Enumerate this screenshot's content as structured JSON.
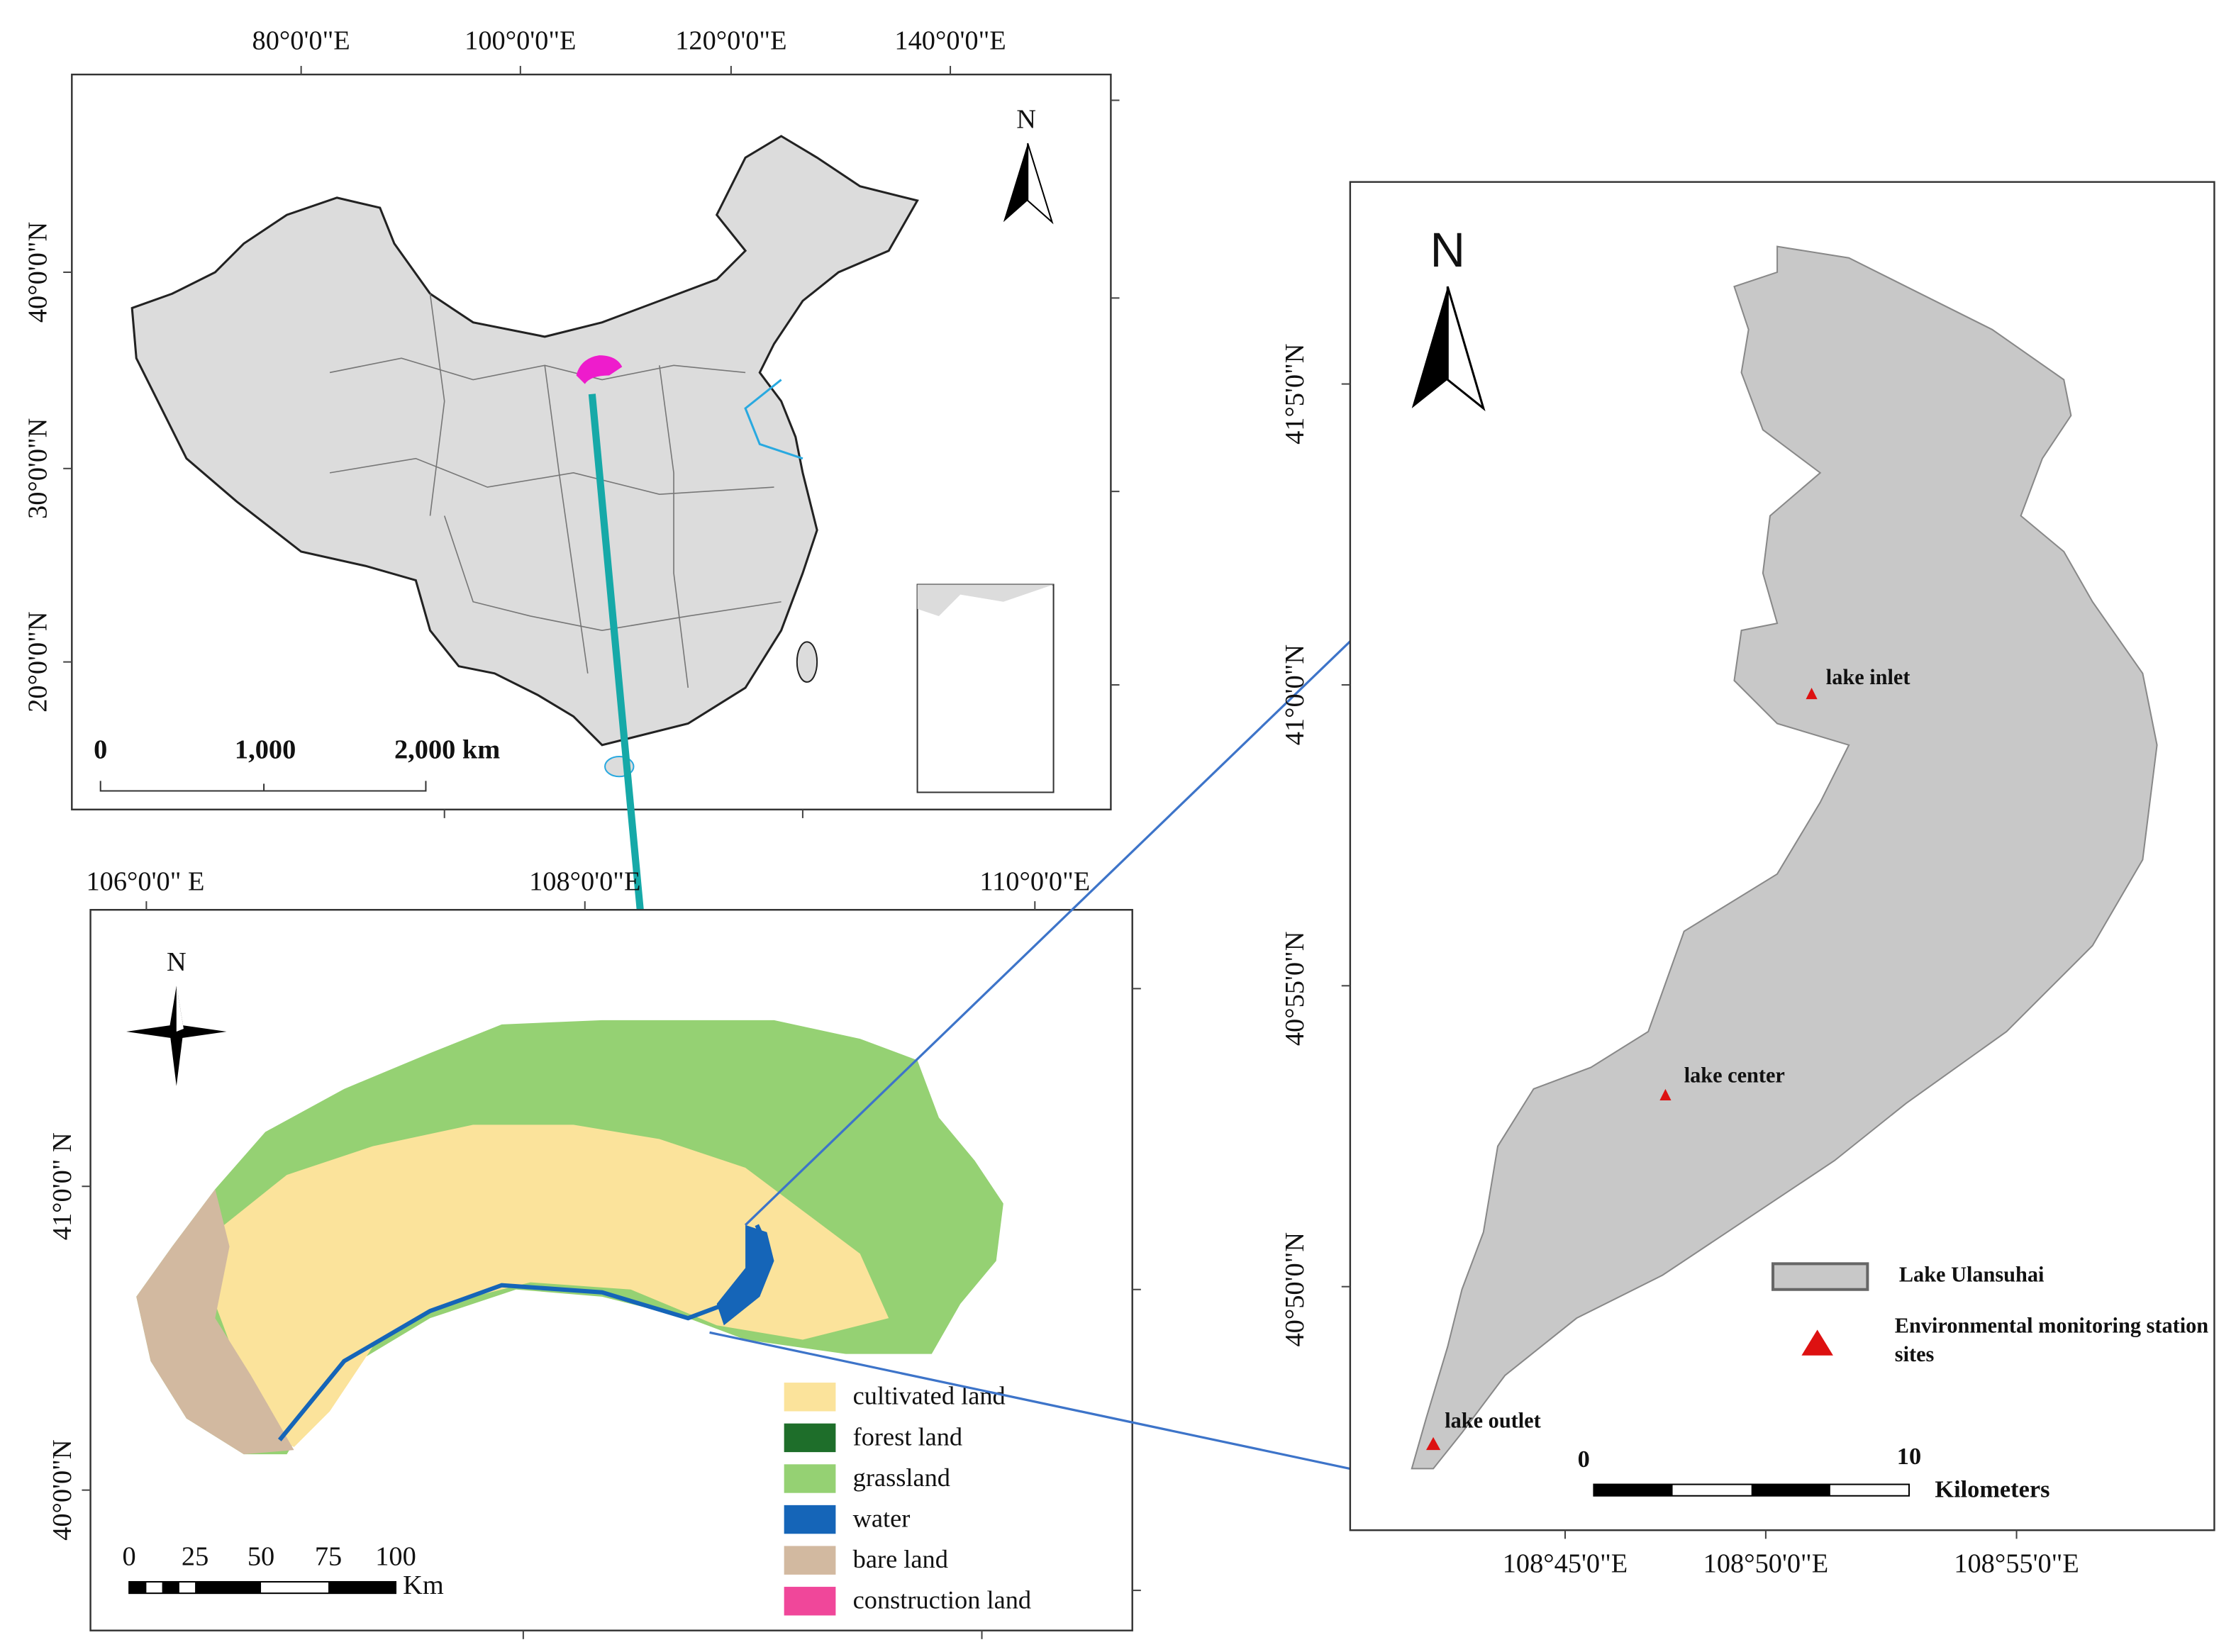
{
  "china_map": {
    "lon_labels": [
      "80°0'0\"E",
      "100°0'0\"E",
      "120°0'0\"E",
      "140°0'0\"E"
    ],
    "lat_labels": [
      "40°0'0\"N",
      "30°0'0\"N",
      "20°0'0\"N"
    ],
    "north": "N",
    "scale_labels": [
      "0",
      "1,000",
      "2,000 km"
    ]
  },
  "basin_map": {
    "lon_labels": [
      "106°0'0\" E",
      "108°0'0\"E",
      "110°0'0\"E"
    ],
    "lat_labels": [
      "41°0'0\" N",
      "40°0'0\"N"
    ],
    "north": "N",
    "scale_labels": [
      "0",
      "25",
      "50",
      "75",
      "100"
    ],
    "scale_unit": "Km",
    "legend": [
      {
        "label": "cultivated land",
        "color": "#fbe39b"
      },
      {
        "label": "forest land",
        "color": "#1e6e2a"
      },
      {
        "label": "grassland",
        "color": "#95d173"
      },
      {
        "label": "water",
        "color": "#1565b8"
      },
      {
        "label": "bare land",
        "color": "#d2b9a0"
      },
      {
        "label": "construction land",
        "color": "#f0479a"
      }
    ]
  },
  "lake_map": {
    "lat_labels": [
      "41°5'0\"N",
      "41°0'0\"N",
      "40°55'0\"N",
      "40°50'0\"N"
    ],
    "lon_labels": [
      "108°45'0\"E",
      "108°50'0\"E",
      "108°55'0\"E"
    ],
    "north": "N",
    "sites": [
      "lake inlet",
      "lake center",
      "lake outlet"
    ],
    "legend": [
      "Lake Ulansuhai",
      "Environmental monitoring station sites"
    ],
    "scale_labels": [
      "0",
      "10"
    ],
    "scale_unit": "Kilometers"
  }
}
